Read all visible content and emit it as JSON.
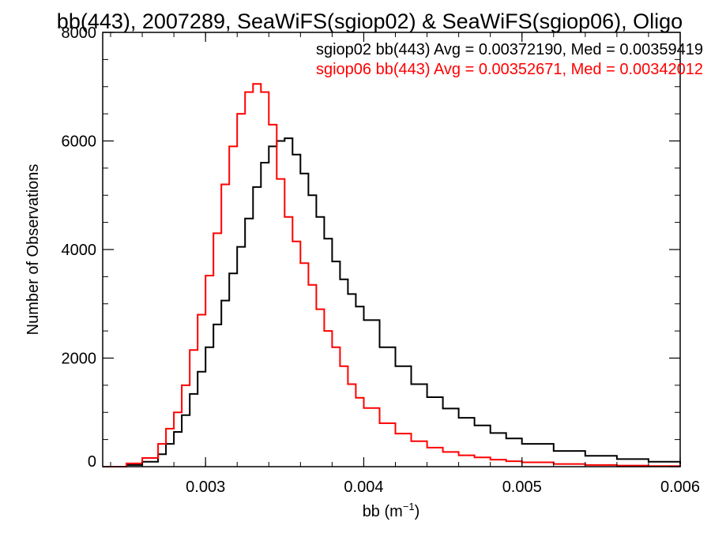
{
  "chart_data": {
    "type": "line",
    "title": "bb(443), 2007289, SeaWiFS(sgiop02) & SeaWiFS(sgiop06), Oligo",
    "xlabel": "bb (m",
    "xlabel_sup": "−1",
    "xlabel_close": ")",
    "ylabel": "Number of Observations",
    "xlim": [
      0.00235,
      0.006
    ],
    "ylim": [
      0,
      8000
    ],
    "xticks": [
      0.003,
      0.004,
      0.005,
      0.006
    ],
    "xtick_labels": [
      "0.003",
      "0.004",
      "0.005",
      "0.006"
    ],
    "yticks": [
      0,
      2000,
      4000,
      6000,
      8000
    ],
    "ytick_labels": [
      "0",
      "2000",
      "4000",
      "6000",
      "8000"
    ],
    "grid": false,
    "legend_position": "top-right",
    "series": [
      {
        "name": "sgiop02 bb(443) Avg = 0.00372190, Med = 0.00359419",
        "color": "#000000",
        "x": [
          0.00235,
          0.0025,
          0.0026,
          0.0027,
          0.00275,
          0.0028,
          0.00285,
          0.0029,
          0.00295,
          0.003,
          0.00305,
          0.0031,
          0.00315,
          0.0032,
          0.00325,
          0.0033,
          0.00335,
          0.0034,
          0.00345,
          0.0035,
          0.00355,
          0.0036,
          0.00365,
          0.0037,
          0.00375,
          0.0038,
          0.00385,
          0.0039,
          0.00395,
          0.004,
          0.0041,
          0.0042,
          0.0043,
          0.0044,
          0.0045,
          0.0046,
          0.0047,
          0.0048,
          0.0049,
          0.005,
          0.0052,
          0.0054,
          0.0056,
          0.0058,
          0.006
        ],
        "y": [
          0,
          30,
          90,
          230,
          420,
          640,
          950,
          1340,
          1750,
          2200,
          2620,
          3060,
          3560,
          4050,
          4570,
          5150,
          5600,
          5900,
          6000,
          6050,
          5750,
          5400,
          5000,
          4600,
          4200,
          3780,
          3450,
          3180,
          2950,
          2700,
          2200,
          1850,
          1520,
          1280,
          1070,
          900,
          760,
          620,
          520,
          420,
          290,
          200,
          140,
          90,
          50
        ]
      },
      {
        "name": "sgiop06 bb(443) Avg = 0.00352671, Med = 0.00342012",
        "color": "#ff0000",
        "x": [
          0.00235,
          0.0025,
          0.0026,
          0.0027,
          0.00275,
          0.0028,
          0.00285,
          0.0029,
          0.00295,
          0.003,
          0.00305,
          0.0031,
          0.00315,
          0.0032,
          0.00325,
          0.0033,
          0.00335,
          0.0034,
          0.00345,
          0.0035,
          0.00355,
          0.0036,
          0.00365,
          0.0037,
          0.00375,
          0.0038,
          0.00385,
          0.0039,
          0.00395,
          0.004,
          0.0041,
          0.0042,
          0.0043,
          0.0044,
          0.0045,
          0.0046,
          0.0047,
          0.0048,
          0.0049,
          0.005,
          0.0052,
          0.0054,
          0.0056,
          0.0058,
          0.006
        ],
        "y": [
          0,
          60,
          160,
          420,
          700,
          1000,
          1500,
          2150,
          2800,
          3520,
          4300,
          5200,
          5900,
          6500,
          6900,
          7050,
          6900,
          6300,
          5300,
          4600,
          4150,
          3750,
          3350,
          2900,
          2500,
          2200,
          1850,
          1520,
          1270,
          1080,
          800,
          610,
          470,
          350,
          270,
          210,
          170,
          130,
          100,
          80,
          50,
          30,
          20,
          10,
          0
        ]
      }
    ]
  }
}
